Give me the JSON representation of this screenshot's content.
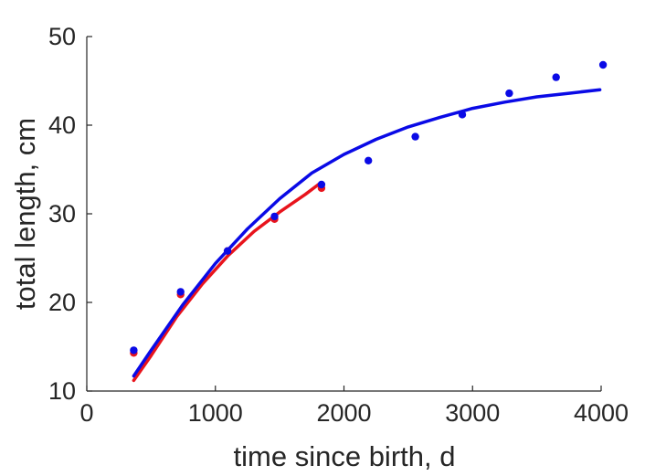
{
  "chart_data": {
    "type": "scatter",
    "xlabel": "time since birth, d",
    "ylabel": "total length, cm",
    "xlim": [
      0,
      4000
    ],
    "ylim": [
      10,
      50
    ],
    "xticks": [
      "0",
      "1000",
      "2000",
      "3000",
      "4000"
    ],
    "yticks": [
      "10",
      "20",
      "30",
      "40",
      "50"
    ],
    "grid": false,
    "series": [
      {
        "kind": "points",
        "color": "#e8141c",
        "x": [
          365,
          730,
          1095,
          1460,
          1825
        ],
        "y": [
          14.3,
          20.9,
          25.8,
          29.4,
          32.9
        ]
      },
      {
        "kind": "points",
        "color": "#0a0ae6",
        "x": [
          365,
          730,
          1095,
          1460,
          1825,
          2190,
          2555,
          2920,
          3285,
          3650,
          4015
        ],
        "y": [
          14.6,
          21.2,
          25.8,
          29.7,
          33.3,
          36.0,
          38.7,
          41.2,
          43.6,
          45.4,
          46.8
        ]
      },
      {
        "kind": "line",
        "color": "#e8141c",
        "x": [
          365,
          500,
          700,
          900,
          1100,
          1300,
          1500,
          1700,
          1810
        ],
        "y": [
          11.2,
          14.0,
          18.4,
          22.1,
          25.3,
          28.0,
          30.2,
          32.2,
          33.4
        ]
      },
      {
        "kind": "line",
        "color": "#0a0ae6",
        "x": [
          365,
          500,
          750,
          1000,
          1250,
          1500,
          1750,
          2000,
          2250,
          2500,
          2750,
          3000,
          3250,
          3500,
          3750,
          3990
        ],
        "y": [
          11.7,
          14.6,
          19.8,
          24.4,
          28.3,
          31.7,
          34.6,
          36.7,
          38.4,
          39.8,
          40.9,
          41.9,
          42.6,
          43.2,
          43.6,
          44.0
        ]
      }
    ]
  }
}
